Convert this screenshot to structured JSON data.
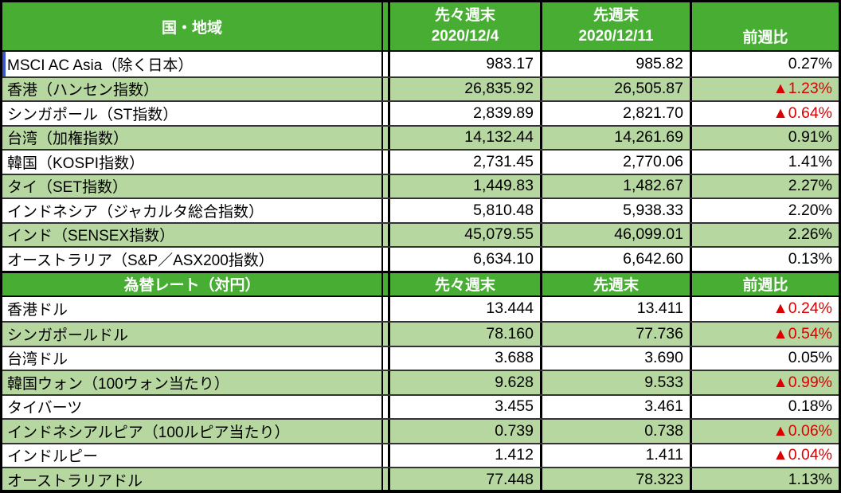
{
  "colors": {
    "header_green": "#47ad33",
    "row_green": "#b7d7a0",
    "negative_red": "#dd0000",
    "text_black": "#000000",
    "selection_blue": "#3a56c8"
  },
  "indices": {
    "header": {
      "country": "国・地域",
      "prev_label": "先々週末",
      "prev_date": "2020/12/4",
      "last_label": "先週末",
      "last_date": "2020/12/11",
      "change_label": "前週比"
    },
    "rows": [
      {
        "name": "MSCI AC Asia（除く日本）",
        "prev": "983.17",
        "last": "985.82",
        "change": "0.27%",
        "negative": false,
        "selected": true
      },
      {
        "name": "香港（ハンセン指数）",
        "prev": "26,835.92",
        "last": "26,505.87",
        "change": "▲1.23%",
        "negative": true
      },
      {
        "name": "シンガポール（ST指数）",
        "prev": "2,839.89",
        "last": "2,821.70",
        "change": "▲0.64%",
        "negative": true
      },
      {
        "name": "台湾（加権指数）",
        "prev": "14,132.44",
        "last": "14,261.69",
        "change": "0.91%",
        "negative": false
      },
      {
        "name": "韓国（KOSPI指数）",
        "prev": "2,731.45",
        "last": "2,770.06",
        "change": "1.41%",
        "negative": false
      },
      {
        "name": "タイ（SET指数）",
        "prev": "1,449.83",
        "last": "1,482.67",
        "change": "2.27%",
        "negative": false
      },
      {
        "name": "インドネシア（ジャカルタ総合指数）",
        "prev": "5,810.48",
        "last": "5,938.33",
        "change": "2.20%",
        "negative": false
      },
      {
        "name": "インド（SENSEX指数）",
        "prev": "45,079.55",
        "last": "46,099.01",
        "change": "2.26%",
        "negative": false
      },
      {
        "name": "オーストラリア（S&P／ASX200指数）",
        "prev": "6,634.10",
        "last": "6,642.60",
        "change": "0.13%",
        "negative": false
      }
    ]
  },
  "fx": {
    "header": {
      "title": "為替レート（対円）",
      "prev_label": "先々週末",
      "last_label": "先週末",
      "change_label": "前週比"
    },
    "rows": [
      {
        "name": "香港ドル",
        "prev": "13.444",
        "last": "13.411",
        "change": "▲0.24%",
        "negative": true
      },
      {
        "name": "シンガポールドル",
        "prev": "78.160",
        "last": "77.736",
        "change": "▲0.54%",
        "negative": true
      },
      {
        "name": "台湾ドル",
        "prev": "3.688",
        "last": "3.690",
        "change": "0.05%",
        "negative": false
      },
      {
        "name": "韓国ウォン（100ウォン当たり）",
        "prev": "9.628",
        "last": "9.533",
        "change": "▲0.99%",
        "negative": true
      },
      {
        "name": "タイバーツ",
        "prev": "3.455",
        "last": "3.461",
        "change": "0.18%",
        "negative": false
      },
      {
        "name": "インドネシアルピア（100ルピア当たり）",
        "prev": "0.739",
        "last": "0.738",
        "change": "▲0.06%",
        "negative": true
      },
      {
        "name": "インドルピー",
        "prev": "1.412",
        "last": "1.411",
        "change": "▲0.04%",
        "negative": true
      },
      {
        "name": "オーストラリアドル",
        "prev": "77.448",
        "last": "78.323",
        "change": "1.13%",
        "negative": false
      }
    ]
  }
}
